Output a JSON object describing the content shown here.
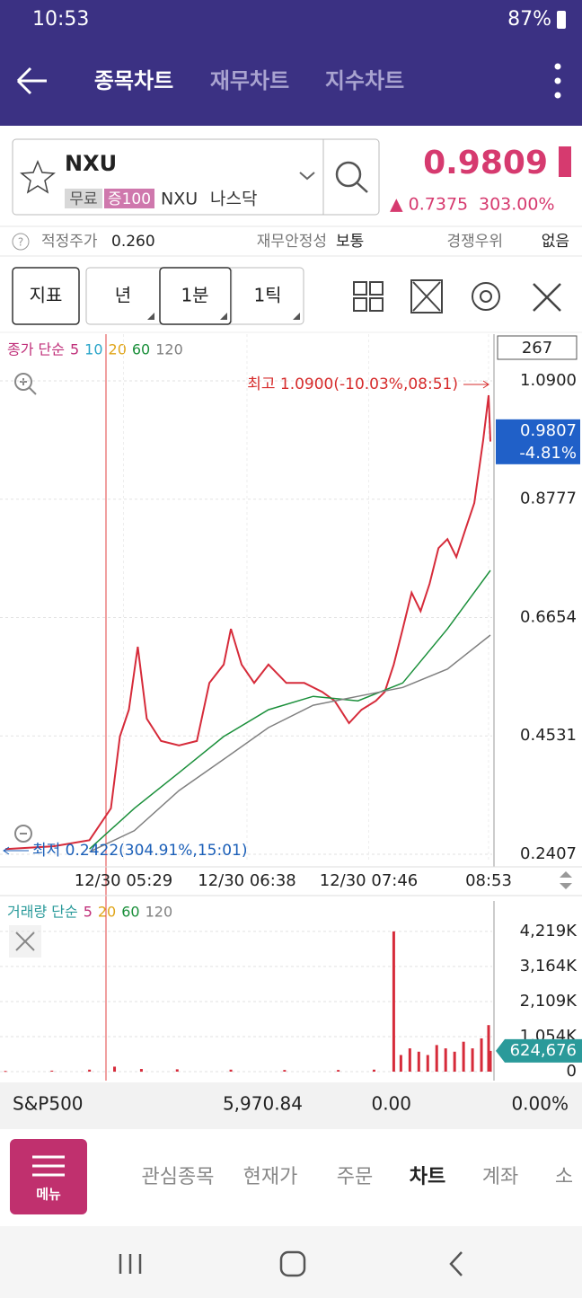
{
  "status_bar": {
    "time": "10:53",
    "battery": "87%"
  },
  "header": {
    "tabs": [
      "종목차트",
      "재무차트",
      "지수차트"
    ]
  },
  "stock": {
    "symbol": "NXU",
    "tags": [
      "무료",
      "증100",
      "NXU",
      "나스닥"
    ],
    "price": "0.9809",
    "change": "▲ 0.7375",
    "change_pct": "303.00%"
  },
  "info": {
    "items": [
      [
        "적정주가",
        "0.260"
      ],
      [
        "재무안정성",
        "보통"
      ],
      [
        "경쟁우위",
        "없음"
      ]
    ]
  },
  "toolbar": {
    "buttons": [
      "지표",
      "년",
      "1분",
      "1틱"
    ]
  },
  "chart_data": [
    {
      "type": "line",
      "indicator_label": "종가 단순",
      "ma_periods": [
        5,
        10,
        20,
        60,
        120
      ],
      "ma_colors": [
        "#c0307a",
        "#2aa5c9",
        "#e0a51a",
        "#1a8f3a",
        "#808080"
      ],
      "bar_count": 267,
      "series": [
        {
          "name": "종가",
          "color": "#d62b3a",
          "x": [
            -66,
            -39,
            -19,
            -7,
            -2,
            3,
            8,
            13,
            21,
            31,
            41,
            48,
            56,
            60,
            66,
            73,
            81,
            91,
            101,
            111,
            118,
            126,
            133,
            141,
            146,
            151,
            156,
            161,
            166,
            171,
            176,
            181,
            186,
            191,
            196,
            201,
            204,
            205
          ],
          "values": [
            0.25,
            0.255,
            0.266,
            0.323,
            0.452,
            0.5,
            0.613,
            0.484,
            0.444,
            0.436,
            0.444,
            0.548,
            0.581,
            0.645,
            0.581,
            0.548,
            0.581,
            0.548,
            0.548,
            0.532,
            0.516,
            0.476,
            0.5,
            0.516,
            0.532,
            0.581,
            0.645,
            0.71,
            0.677,
            0.726,
            0.79,
            0.806,
            0.774,
            0.823,
            0.871,
            0.984,
            1.064,
            0.981
          ]
        },
        {
          "name": "60",
          "color": "#1a8f3a",
          "x": [
            -19,
            6,
            31,
            56,
            81,
            106,
            131,
            156,
            181,
            205
          ],
          "values": [
            0.25,
            0.323,
            0.387,
            0.452,
            0.5,
            0.524,
            0.516,
            0.548,
            0.645,
            0.75
          ]
        },
        {
          "name": "120",
          "color": "#808080",
          "x": [
            -19,
            6,
            31,
            56,
            81,
            106,
            131,
            156,
            181,
            205
          ],
          "values": [
            0.245,
            0.283,
            0.355,
            0.411,
            0.468,
            0.508,
            0.524,
            0.54,
            0.573,
            0.634
          ]
        }
      ],
      "xlim": [
        -69,
        206
      ],
      "xticks": [
        {
          "value": 0,
          "label": "12/30 05:29"
        },
        {
          "value": 69,
          "label": "12/30 06:38"
        },
        {
          "value": 137,
          "label": "12/30 07:46"
        },
        {
          "value": 204,
          "label": "08:53"
        }
      ],
      "ylim": [
        0.2262,
        1.1738
      ],
      "yticks": [
        {
          "value": 1.09,
          "label": "1.0900"
        },
        0.8777,
        0.6654,
        0.4531,
        0.2407
      ],
      "last_price": 0.9807,
      "last_change": "-4.81%",
      "high_annotation": "최고 1.0900(-10.03%,08:51)",
      "low_annotation": "최저 0.2422(304.91%,15:01)",
      "grid": true
    },
    {
      "type": "bar",
      "indicator_label": "거래량 단순",
      "ma_periods": [
        5,
        20,
        60,
        120
      ],
      "ma_colors": [
        "#c0307a",
        "#e0a51a",
        "#1a8f3a",
        "#808080"
      ],
      "color": "#d62b3a",
      "x": [
        -66,
        -40,
        -19,
        -5,
        10,
        30,
        60,
        90,
        120,
        140,
        151,
        155,
        160,
        165,
        170,
        175,
        180,
        185,
        190,
        195,
        200,
        204,
        205
      ],
      "values": [
        20000,
        30000,
        60000,
        150000,
        80000,
        70000,
        60000,
        50000,
        50000,
        60000,
        4219000,
        500000,
        700000,
        600000,
        500000,
        800000,
        700000,
        600000,
        900000,
        700000,
        1000000,
        1400000,
        624676
      ],
      "xlim": [
        -69,
        206
      ],
      "ylim": [
        0,
        5000000
      ],
      "yticks": [
        {
          "value": 4219000,
          "label": "4,219K"
        },
        {
          "value": 3164000,
          "label": "3,164K"
        },
        {
          "value": 2109000,
          "label": "2,109K"
        },
        {
          "value": 1054000,
          "label": "1,054K"
        },
        0
      ],
      "last_value": {
        "value": 624676,
        "label": "624,676"
      },
      "grid": true
    }
  ],
  "index_bar": {
    "name": "S&P500",
    "value": "5,970.84",
    "change": "0.00",
    "change_pct": "0.00%"
  },
  "nav": {
    "menu": "메뉴",
    "items": [
      "관심종목",
      "현재가",
      "주문",
      "차트",
      "계좌",
      "소"
    ]
  }
}
